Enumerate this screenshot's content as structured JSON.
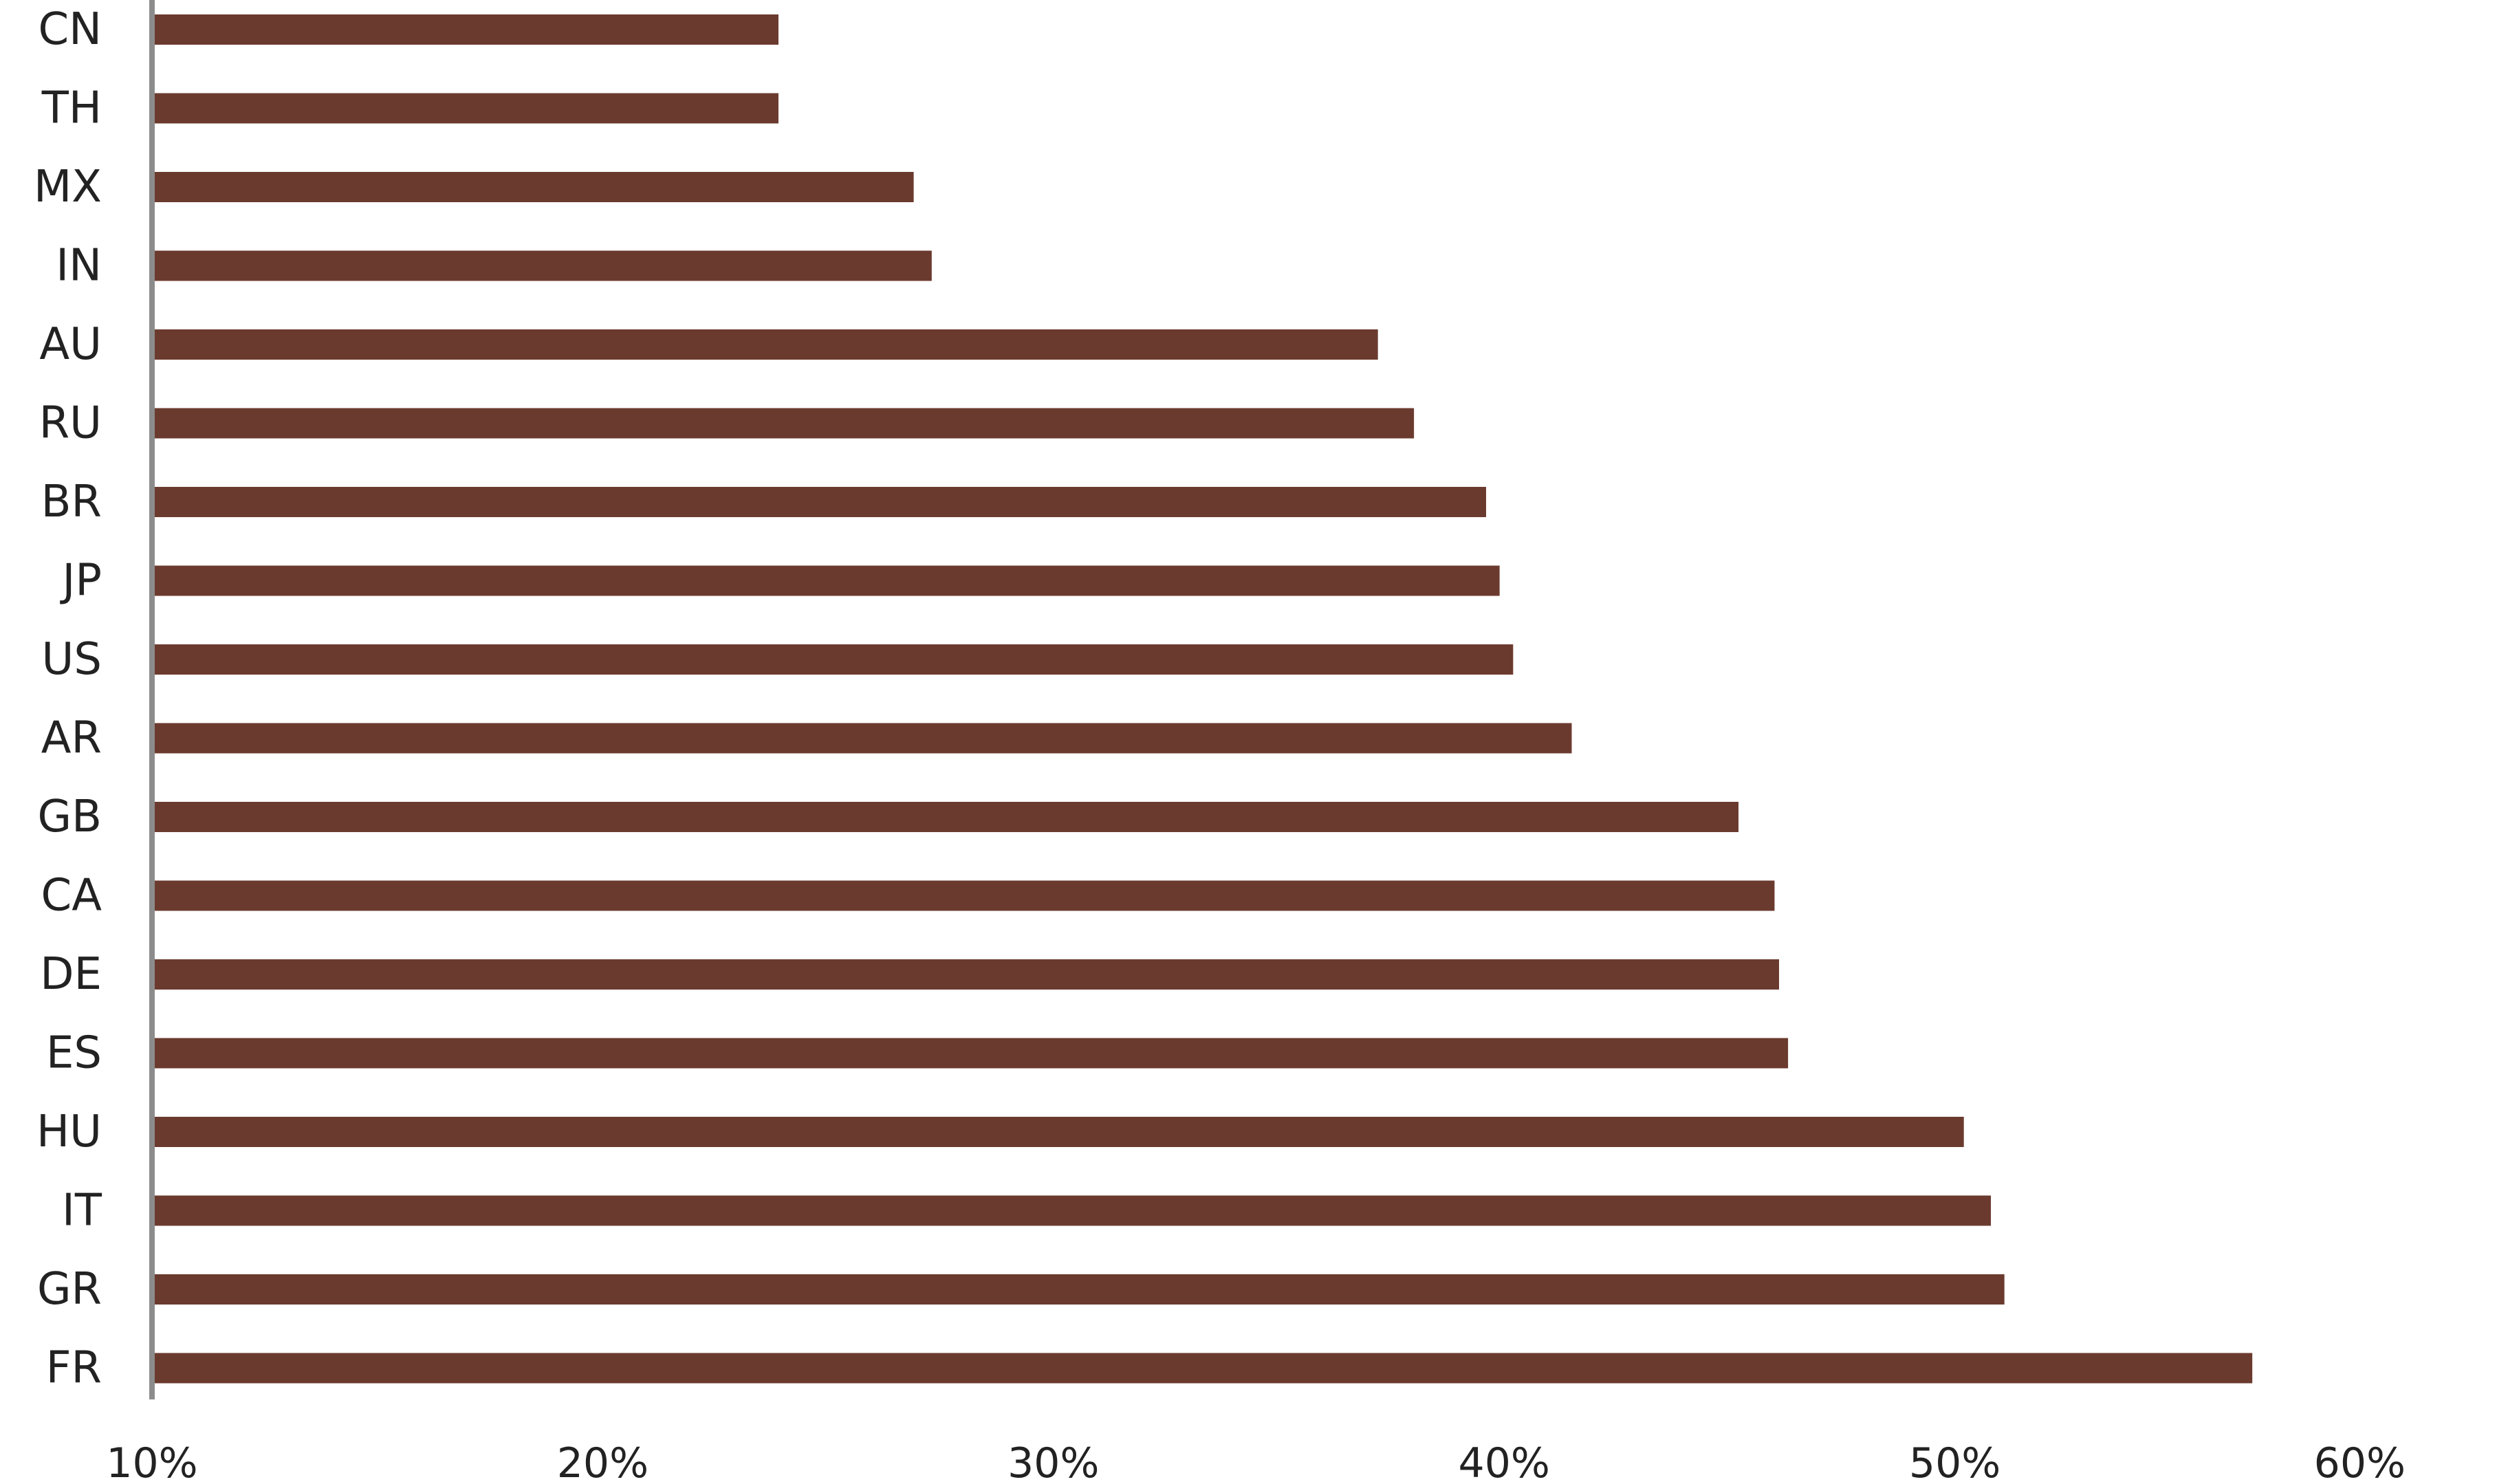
{
  "chart_data": {
    "type": "bar",
    "orientation": "horizontal",
    "categories": [
      "CN",
      "TH",
      "MX",
      "IN",
      "AU",
      "RU",
      "BR",
      "JP",
      "US",
      "AR",
      "GB",
      "CA",
      "DE",
      "ES",
      "HU",
      "IT",
      "GR",
      "FR"
    ],
    "values": [
      23.9,
      23.9,
      26.9,
      27.3,
      37.2,
      38.0,
      39.6,
      39.9,
      40.2,
      41.5,
      45.2,
      46.0,
      46.1,
      46.3,
      50.2,
      50.8,
      51.1,
      56.6
    ],
    "xlim": [
      10,
      60
    ],
    "xticks": [
      "10%",
      "20%",
      "30%",
      "40%",
      "50%",
      "60%"
    ],
    "title": "",
    "xlabel": "",
    "ylabel": "",
    "grid": false,
    "legend": "none",
    "colors": {
      "bar": "#6b3a2e",
      "axis": "#8c8c8c"
    }
  }
}
